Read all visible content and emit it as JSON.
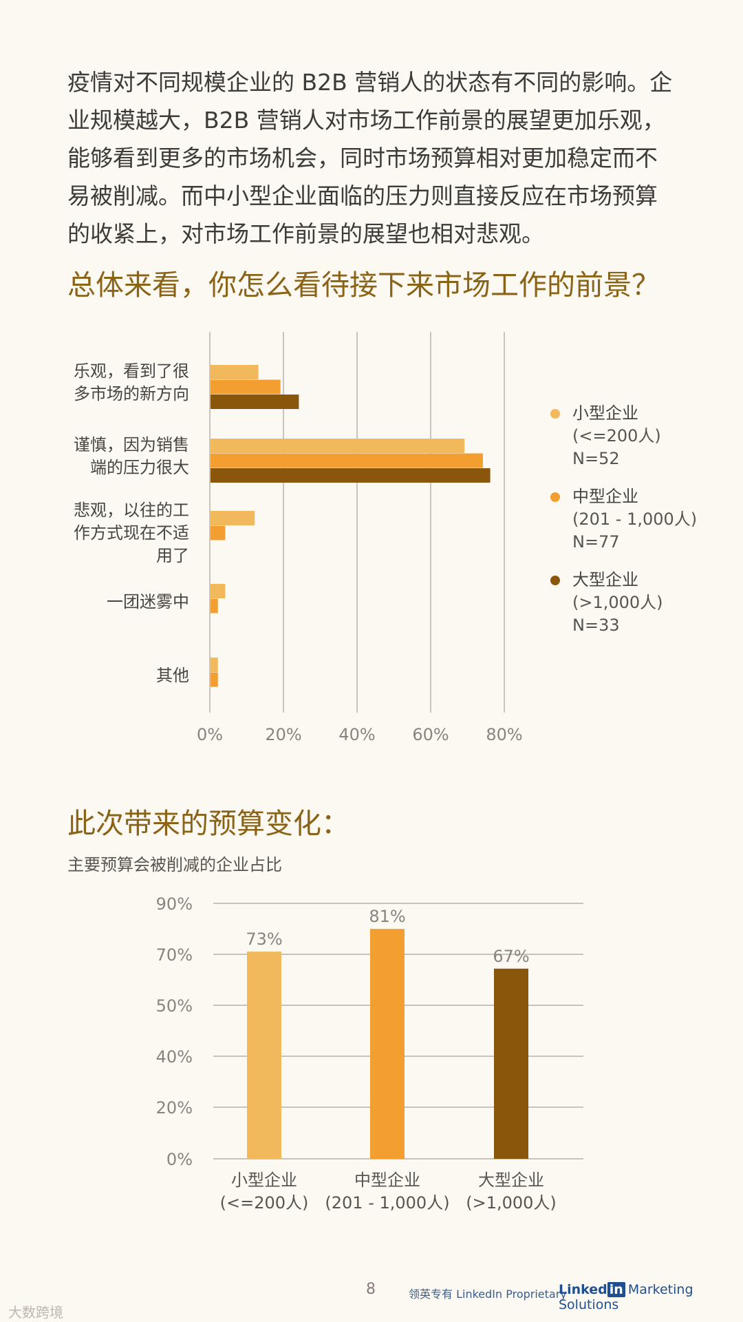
{
  "intro_text": "疫情对不同规模企业的 B2B 营销人的状态有不同的影响。企业规模越大，B2B 营销人对市场工作前景的展望更加乐观，能够看到更多的市场机会，同时市场预算相对更加稳定而不易被削减。而中小型企业面临的压力则直接反应在市场预算的收紧上，对市场工作前景的展望也相对悲观。",
  "section1_title": "总体来看，你怎么看待接下来市场工作的前景？",
  "section2_title": "此次带来的预算变化：",
  "section2_subtitle": "主要预算会被削减的企业占比",
  "legend": [
    {
      "name": "小型企业",
      "size": "(<=200人)",
      "n": "N=52"
    },
    {
      "name": "中型企业",
      "size": "(201 - 1,000人)",
      "n": "N=77"
    },
    {
      "name": "大型企业",
      "size": "(>1,000人)",
      "n": "N=33"
    }
  ],
  "colors": {
    "small": "#f2b85c",
    "medium": "#f29e30",
    "large": "#8a560c",
    "grid": "#a9a29c",
    "axis_text": "#8a837d"
  },
  "chart_data": [
    {
      "type": "bar",
      "orientation": "horizontal",
      "title": "总体来看，你怎么看待接下来市场工作的前景？",
      "categories": [
        "乐观，看到了很\n多市场的新方向",
        "谨慎，因为销售\n端的压力很大",
        "悲观，以往的工\n作方式现在不适\n用了",
        "一团迷雾中",
        "其他"
      ],
      "series": [
        {
          "name": "小型企业 (<=200人) N=52",
          "values": [
            13,
            69,
            12,
            4,
            2
          ]
        },
        {
          "name": "中型企业 (201 - 1,000人) N=77",
          "values": [
            19,
            74,
            4,
            2,
            2
          ]
        },
        {
          "name": "大型企业 (>1,000人) N=33",
          "values": [
            24,
            76,
            0,
            0,
            0
          ]
        }
      ],
      "x_ticks": [
        "0%",
        "20%",
        "40%",
        "60%",
        "80%"
      ],
      "xlim": [
        0,
        80
      ],
      "grid": true,
      "legend_position": "right"
    },
    {
      "type": "bar",
      "orientation": "vertical",
      "title": "此次带来的预算变化：",
      "subtitle": "主要预算会被削减的企业占比",
      "categories": [
        "小型企业\n(<=200人)",
        "中型企业\n(201 - 1,000人)",
        "大型企业\n(>1,000人)"
      ],
      "values": [
        73,
        81,
        67
      ],
      "data_labels": [
        "73%",
        "81%",
        "67%"
      ],
      "y_ticks": [
        "90%",
        "70%",
        "50%",
        "40%",
        "20%",
        "0%"
      ],
      "grid": true
    }
  ],
  "footer": {
    "page_number": "8",
    "proprietary": "领英专有 LinkedIn Proprietary",
    "brand_a": "Linked",
    "brand_b": "in",
    "brand_c": "Marketing Solutions"
  },
  "watermark": "大数跨境"
}
